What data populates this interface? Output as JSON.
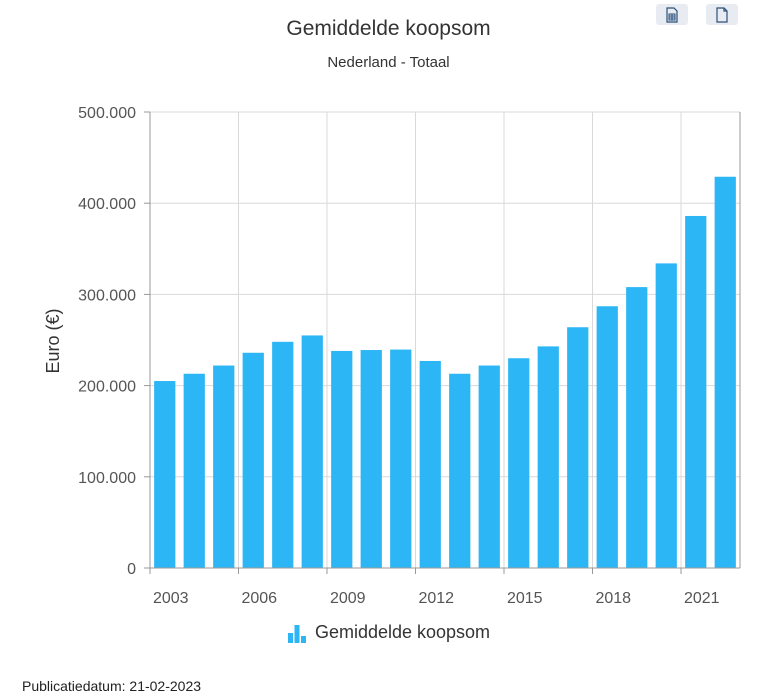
{
  "title": "Gemiddelde koopsom",
  "subtitle": "Nederland - Totaal",
  "toolbar": {
    "export_table_icon": "table-icon",
    "export_doc_icon": "document-icon"
  },
  "legend": {
    "label": "Gemiddelde koopsom",
    "icon": "bar-chart-icon"
  },
  "footer": {
    "label": "Publicatiedatum:",
    "date": "21-02-2023"
  },
  "colors": {
    "bar": "#2db6f5",
    "grid": "#d9d9d9",
    "axis": "#999999",
    "text": "#333333",
    "button_bg": "#e8ecf2",
    "button_icon": "#2a4f7a"
  },
  "chart_data": {
    "type": "bar",
    "title": "Gemiddelde koopsom",
    "subtitle": "Nederland - Totaal",
    "ylabel": "Euro (€)",
    "xlabel": "",
    "categories": [
      "2003",
      "2004",
      "2005",
      "2006",
      "2007",
      "2008",
      "2009",
      "2010",
      "2011",
      "2012",
      "2013",
      "2014",
      "2015",
      "2016",
      "2017",
      "2018",
      "2019",
      "2020",
      "2021",
      "2022"
    ],
    "values": [
      205000,
      213000,
      222000,
      236000,
      248000,
      255000,
      238000,
      239000,
      239500,
      227000,
      213000,
      222000,
      230000,
      243000,
      264000,
      287000,
      308000,
      334000,
      386000,
      429000
    ],
    "x_tick_labels": [
      "2003",
      "2006",
      "2009",
      "2012",
      "2015",
      "2018",
      "2021"
    ],
    "y_ticks": [
      0,
      100000,
      200000,
      300000,
      400000,
      500000
    ],
    "y_tick_labels": [
      "0",
      "100.000",
      "200.000",
      "300.000",
      "400.000",
      "500.000"
    ],
    "ylim": [
      0,
      500000
    ],
    "grid": true,
    "legend_position": "bottom"
  }
}
